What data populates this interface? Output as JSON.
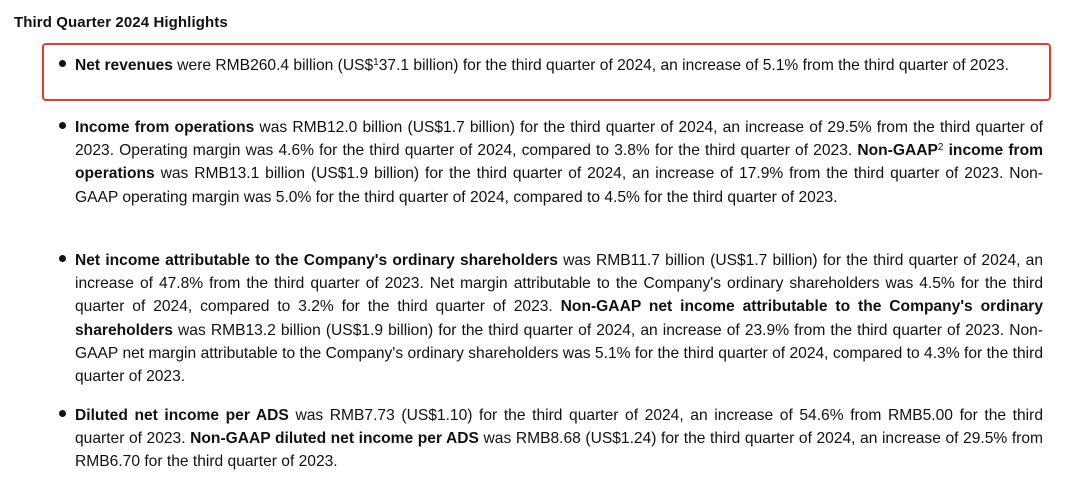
{
  "title": "Third Quarter 2024 Highlights",
  "items": [
    {
      "bold_1": "Net revenues",
      "text_1": " were RMB260.4 billion (US$",
      "sup_1": "1",
      "text_2": "37.1 billion) for the third quarter of 2024, an increase of 5.1% from the third quarter of 2023."
    },
    {
      "bold_1": "Income from operations",
      "text_1": " was RMB12.0 billion (US$1.7 billion) for the third quarter of 2024, an increase of 29.5% from the third quarter of 2023. Operating margin was 4.6% for the third quarter of 2024, compared to 3.8% for the third quarter of 2023. ",
      "bold_2": "Non-GAAP",
      "sup_1": "2",
      "bold_3": " income from operations",
      "text_2": " was RMB13.1 billion (US$1.9 billion) for the third quarter of 2024, an increase of 17.9% from the third quarter of 2023. Non-GAAP operating margin was 5.0% for the third quarter of 2024, compared to 4.5% for the third quarter of 2023."
    },
    {
      "bold_1": "Net income attributable to the Company's ordinary shareholders",
      "text_1": " was RMB11.7 billion (US$1.7 billion) for the third quarter of 2024, an increase of 47.8% from the third quarter of 2023. Net margin attributable to the Company's ordinary shareholders was 4.5% for the third quarter of 2024, compared to 3.2% for the third quarter of 2023. ",
      "bold_2": "Non-GAAP net income attributable to the Company's ordinary shareholders",
      "text_2": " was RMB13.2 billion (US$1.9 billion) for the third quarter of 2024, an increase of 23.9% from the third quarter of 2023. Non-GAAP net margin attributable to the Company's ordinary shareholders was 5.1% for the third quarter of 2024, compared to 4.3% for the third quarter of 2023."
    },
    {
      "bold_1": "Diluted net income per ADS",
      "text_1": " was RMB7.73 (US$1.10) for the third quarter of 2024, an increase of 54.6% from RMB5.00 for the third quarter of 2023. ",
      "bold_2": "Non-GAAP diluted net income per ADS",
      "text_2": " was RMB8.68 (US$1.24) for the third quarter of 2024, an increase of 29.5% from RMB6.70 for the third quarter of 2023."
    }
  ],
  "highlight_color": "#e33a30"
}
